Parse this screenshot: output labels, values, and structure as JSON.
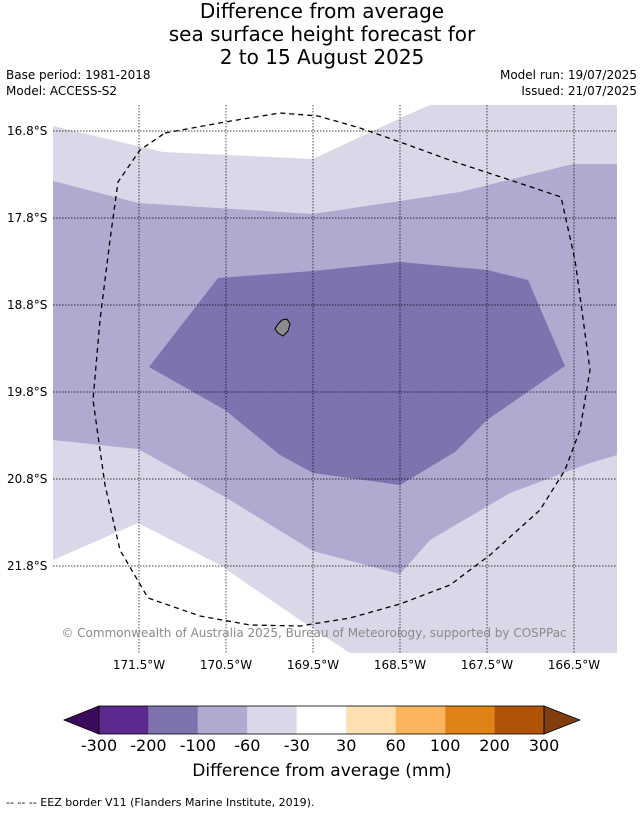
{
  "title": {
    "line1": "Difference from average",
    "line2": "sea surface height forecast for",
    "line3": "2 to 15 August 2025"
  },
  "meta": {
    "base_period": "Base period: 1981-2018",
    "model": "Model: ACCESS-S2",
    "model_run": "Model run: 19/07/2025",
    "issued": "Issued: 21/07/2025"
  },
  "map": {
    "lat_labels": [
      "16.8°S",
      "17.8°S",
      "18.8°S",
      "19.8°S",
      "20.8°S",
      "21.8°S"
    ],
    "lon_labels": [
      "171.5°W",
      "170.5°W",
      "169.5°W",
      "168.5°W",
      "167.5°W",
      "166.5°W"
    ],
    "copyright": "© Commonwealth of Australia 2025, Bureau of Meteorology, supported by COSPPac",
    "colors": {
      "band_-60_-30": "#d8d8e8",
      "band_-100_-60": "#aeaad0",
      "band_-200_-100": "#7f73af",
      "land": "#8c8c8c",
      "eez_border": "#000000"
    }
  },
  "colorbar": {
    "ticks": [
      "-300",
      "-200",
      "-100",
      "-60",
      "-30",
      "30",
      "60",
      "100",
      "200",
      "300"
    ],
    "colors": [
      "#3b0a5c",
      "#5c2a8e",
      "#7f73af",
      "#aeaad0",
      "#d8d8e8",
      "#ffffff",
      "#fddfb2",
      "#fbb55e",
      "#e08316",
      "#b05306",
      "#7f3e0c"
    ],
    "title": "Difference from average (mm)"
  },
  "footnote": "--  --  -- EEZ border V11 (Flanders Marine Institute, 2019)."
}
